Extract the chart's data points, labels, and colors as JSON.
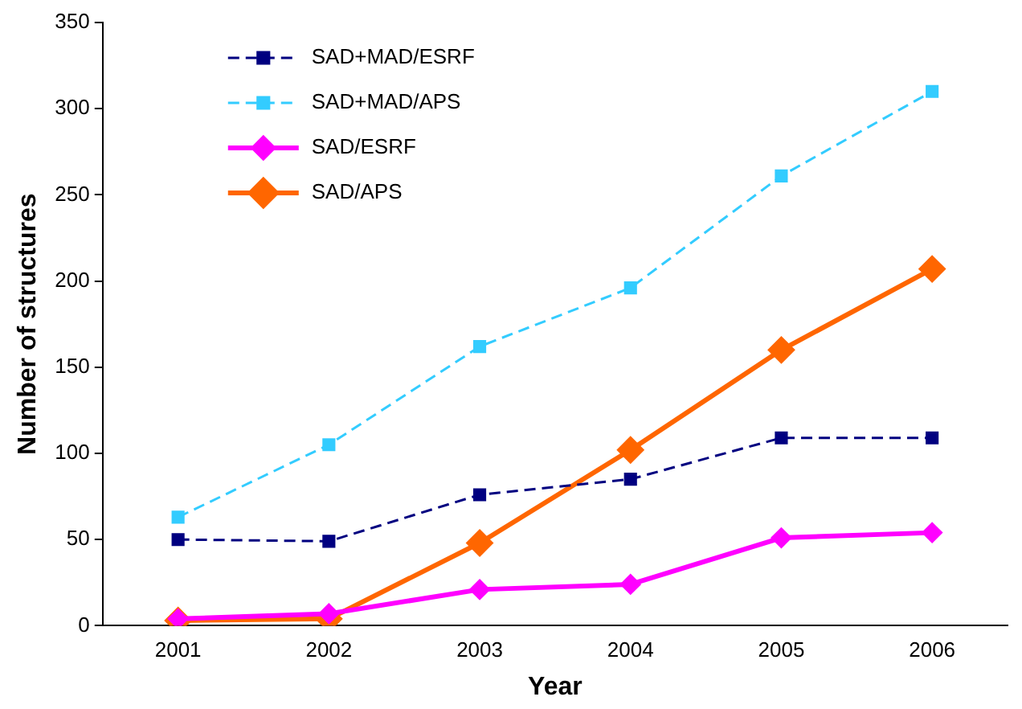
{
  "chart_data": {
    "type": "line",
    "xlabel": "Year",
    "ylabel": "Number of structures",
    "categories": [
      "2001",
      "2002",
      "2003",
      "2004",
      "2005",
      "2006"
    ],
    "ylim": [
      0,
      350
    ],
    "yticks": [
      0,
      50,
      100,
      150,
      200,
      250,
      300,
      350
    ],
    "grid": false,
    "legend": "top left",
    "series": [
      {
        "name": "SAD+MAD/ESRF",
        "color": "#000080",
        "values": [
          50,
          49,
          76,
          85,
          109,
          109
        ],
        "marker": "square",
        "line_style": "dashed"
      },
      {
        "name": "SAD+MAD/APS",
        "color": "#33ccff",
        "values": [
          63,
          105,
          162,
          196,
          261,
          310
        ],
        "marker": "square",
        "line_style": "dashed"
      },
      {
        "name": "SAD/ESRF",
        "color": "#ff00ff",
        "values": [
          4,
          7,
          21,
          24,
          51,
          54
        ],
        "marker": "diamond",
        "line_style": "solid"
      },
      {
        "name": "SAD/APS",
        "color": "#ff6600",
        "values": [
          3,
          4,
          48,
          102,
          160,
          207
        ],
        "marker": "diamond",
        "line_style": "solid"
      }
    ]
  }
}
